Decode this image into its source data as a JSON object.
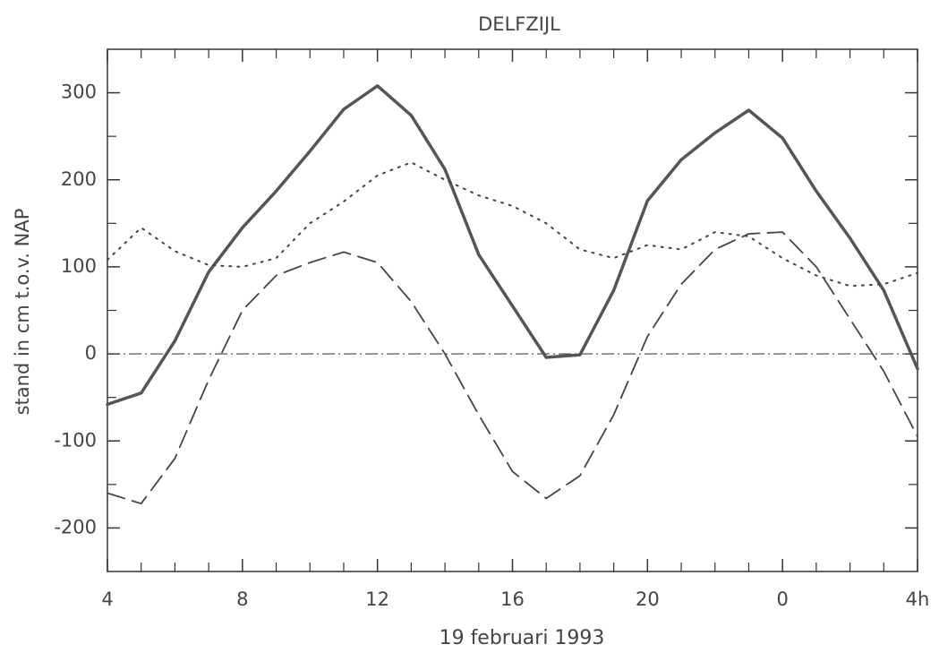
{
  "chart_data": {
    "type": "line",
    "title": "DELFZIJL",
    "x_label": "19 februari 1993",
    "y_label": "stand in cm t.o.v. NAP",
    "x": [
      4,
      5,
      6,
      7,
      8,
      9,
      10,
      11,
      12,
      13,
      14,
      15,
      16,
      17,
      18,
      19,
      20,
      21,
      22,
      23,
      24,
      25,
      26,
      27,
      28
    ],
    "series": [
      {
        "color": "#555555",
        "style": "solid",
        "values": [
          -58,
          -45,
          15,
          94,
          145,
          187,
          233,
          281,
          308,
          274,
          212,
          114,
          55,
          -4,
          -1,
          73,
          176,
          223,
          254,
          280,
          248,
          187,
          133,
          73,
          -17
        ]
      },
      {
        "color": "#444444",
        "style": "dotted",
        "values": [
          108,
          145,
          118,
          102,
          100,
          110,
          150,
          175,
          205,
          220,
          200,
          182,
          170,
          150,
          120,
          110,
          125,
          120,
          140,
          135,
          110,
          90,
          78,
          80,
          93
        ]
      },
      {
        "color": "#444444",
        "style": "dashed",
        "values": [
          -160,
          -172,
          -120,
          -30,
          50,
          90,
          105,
          117,
          105,
          60,
          0,
          -70,
          -135,
          -166,
          -140,
          -70,
          20,
          80,
          120,
          138,
          140,
          100,
          40,
          -20,
          -95
        ]
      }
    ],
    "reference_line": 0,
    "xlim": [
      4,
      28
    ],
    "xticks": [
      4,
      8,
      12,
      16,
      20,
      {
        "value": 24,
        "label": "0"
      },
      {
        "value": 28,
        "label": "4h"
      }
    ],
    "xminorticks": [
      5,
      6,
      7,
      9,
      10,
      11,
      13,
      14,
      15,
      17,
      18,
      19,
      21,
      22,
      23,
      25,
      26,
      27
    ],
    "ylim": [
      -250,
      350
    ],
    "yticks": [
      -200,
      -100,
      0,
      100,
      200,
      300
    ],
    "yminorticks": [
      -150,
      -50,
      50,
      150,
      250
    ]
  }
}
